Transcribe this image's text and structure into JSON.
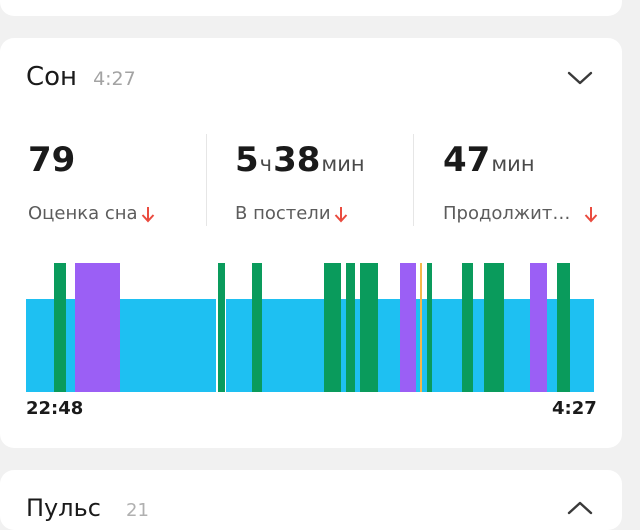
{
  "sleep": {
    "title": "Сон",
    "time": "4:27",
    "score": {
      "value": "79",
      "label": "Оценка сна"
    },
    "in_bed": {
      "hours": "5",
      "hours_unit": "ч",
      "minutes": "38",
      "minutes_unit": "мин",
      "label": "В постели"
    },
    "duration": {
      "value": "47",
      "unit": "мин",
      "label": "Продолжит…"
    },
    "chart": {
      "start_label": "22:48",
      "end_label": "4:27",
      "colors": {
        "light": "#1ec0f2",
        "deep": "#0a9b5c",
        "rem": "#9b5ff5",
        "awake": "#f5b84a"
      }
    }
  },
  "pulse": {
    "title": "Пульс",
    "time": "21"
  },
  "colors": {
    "arrow_down": "#ea4b3f",
    "card": "#ffffff",
    "background": "#f1f1f1"
  },
  "icons": {
    "collapse": "chevron-down-icon",
    "expand": "chevron-up-icon",
    "trend": "arrow-down-icon"
  }
}
